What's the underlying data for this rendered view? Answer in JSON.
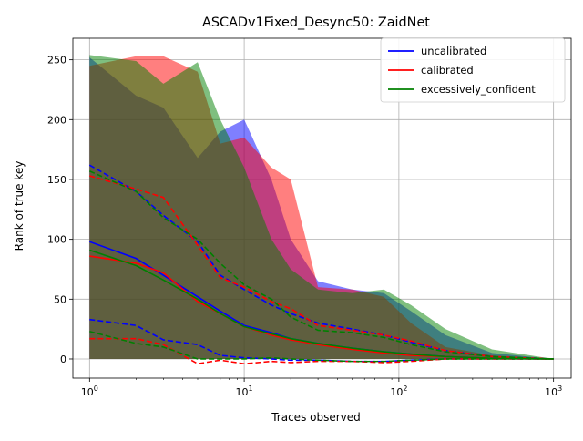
{
  "chart_data": {
    "type": "line",
    "title": "ASCADv1Fixed_Desync50: ZaidNet",
    "xlabel": "Traces observed",
    "ylabel": "Rank of true key",
    "xscale": "log",
    "xlim": [
      0.78,
      1300
    ],
    "ylim": [
      -16,
      268
    ],
    "grid": true,
    "legend_position": "top-right",
    "x_ticks": [
      {
        "value": 1,
        "base": "10",
        "exp": "0"
      },
      {
        "value": 10,
        "base": "10",
        "exp": "1"
      },
      {
        "value": 100,
        "base": "10",
        "exp": "2"
      },
      {
        "value": 1000,
        "base": "10",
        "exp": "3"
      }
    ],
    "y_ticks": [
      0,
      50,
      100,
      150,
      200,
      250
    ],
    "series": [
      {
        "name": "uncalibrated",
        "color": "#0000ff",
        "x": [
          1,
          2,
          3,
          5,
          7,
          10,
          15,
          20,
          30,
          50,
          80,
          120,
          200,
          400,
          1000
        ],
        "mean": [
          98,
          84,
          70,
          52,
          40,
          28,
          22,
          17,
          13,
          9,
          6,
          4,
          2,
          0.5,
          0
        ],
        "upper_dashed": [
          162,
          140,
          120,
          98,
          70,
          58,
          45,
          38,
          30,
          25,
          20,
          14,
          7,
          2,
          0
        ],
        "lower_dashed": [
          33,
          28,
          16,
          12,
          3,
          1,
          0,
          -1,
          -1,
          -2,
          -2,
          -1,
          0,
          0,
          0
        ],
        "band_upper": [
          252,
          220,
          210,
          168,
          190,
          200,
          150,
          100,
          65,
          58,
          55,
          40,
          20,
          5,
          0
        ],
        "band_lower": [
          0,
          0,
          0,
          0,
          0,
          0,
          0,
          0,
          0,
          0,
          0,
          0,
          0,
          0,
          0
        ]
      },
      {
        "name": "calibrated",
        "color": "#ff0000",
        "x": [
          1,
          2,
          3,
          5,
          7,
          10,
          15,
          20,
          30,
          50,
          80,
          120,
          200,
          400,
          1000
        ],
        "mean": [
          86,
          80,
          72,
          48,
          38,
          27,
          20,
          16,
          12,
          8,
          5,
          3,
          2,
          0.5,
          0
        ],
        "upper_dashed": [
          153,
          142,
          135,
          95,
          68,
          60,
          48,
          42,
          28,
          24,
          20,
          15,
          7,
          2,
          0
        ],
        "lower_dashed": [
          17,
          17,
          12,
          -4,
          -1,
          -4,
          -2,
          -3,
          -2,
          -2,
          -3,
          -2,
          0,
          0,
          0
        ],
        "band_upper": [
          245,
          253,
          253,
          240,
          180,
          185,
          160,
          150,
          60,
          58,
          52,
          30,
          10,
          3,
          0
        ],
        "band_lower": [
          0,
          0,
          0,
          0,
          0,
          0,
          0,
          0,
          0,
          0,
          0,
          0,
          0,
          0,
          0
        ]
      },
      {
        "name": "excessively_confident",
        "color": "#008000",
        "x": [
          1,
          2,
          3,
          5,
          7,
          10,
          15,
          20,
          30,
          50,
          80,
          120,
          200,
          400,
          1000
        ],
        "mean": [
          91,
          78,
          66,
          50,
          38,
          27,
          21,
          17,
          13,
          9,
          6,
          4,
          2,
          0.5,
          0
        ],
        "upper_dashed": [
          157,
          140,
          118,
          100,
          80,
          62,
          50,
          35,
          24,
          22,
          18,
          12,
          6,
          2,
          0
        ],
        "lower_dashed": [
          23,
          13,
          10,
          0,
          0,
          0,
          1,
          0,
          -1,
          -2,
          -2,
          -1,
          0,
          0,
          0
        ],
        "band_upper": [
          254,
          249,
          230,
          248,
          200,
          160,
          100,
          75,
          58,
          55,
          58,
          45,
          25,
          8,
          0
        ],
        "band_lower": [
          0,
          0,
          0,
          0,
          0,
          0,
          0,
          0,
          0,
          0,
          0,
          0,
          0,
          0,
          0
        ]
      }
    ]
  }
}
